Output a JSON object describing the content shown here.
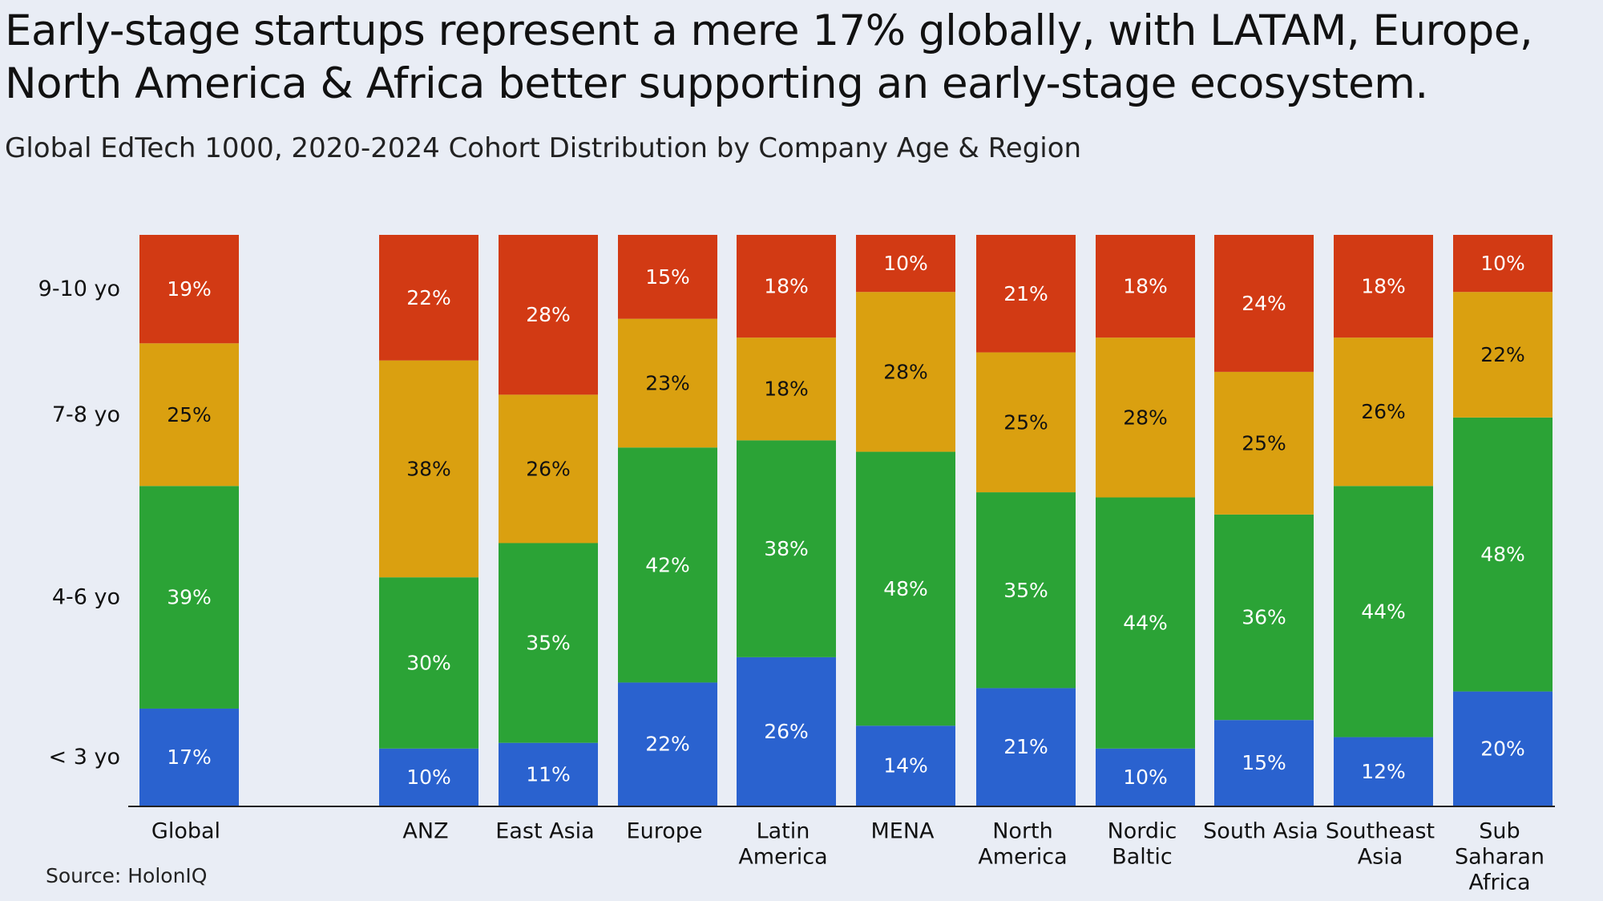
{
  "title": "Early-stage startups represent a mere 17% globally, with LATAM, Europe, North America & Africa better supporting an early-stage ecosystem.",
  "subtitle": "Global EdTech 1000, 2020-2024 Cohort Distribution by Company Age & Region",
  "source": "Source: HolonIQ",
  "chart_data": {
    "type": "bar",
    "stacked": true,
    "normalized": true,
    "categories": [
      "Global",
      "ANZ",
      "East Asia",
      "Europe",
      "Latin America",
      "MENA",
      "North America",
      "Nordic Baltic",
      "South Asia",
      "Southeast Asia",
      "Sub Saharan Africa"
    ],
    "category_label_lines": [
      [
        "Global"
      ],
      [
        "ANZ"
      ],
      [
        "East Asia"
      ],
      [
        "Europe"
      ],
      [
        "Latin",
        "America"
      ],
      [
        "MENA"
      ],
      [
        "North",
        "America"
      ],
      [
        "Nordic",
        "Baltic"
      ],
      [
        "South Asia"
      ],
      [
        "Southeast",
        "Asia"
      ],
      [
        "Sub",
        "Saharan",
        "Africa"
      ]
    ],
    "series": [
      {
        "name": "< 3 yo",
        "color": "#2a62cf",
        "label_color": "#ffffff",
        "values": [
          17,
          10,
          11,
          22,
          26,
          14,
          21,
          10,
          15,
          12,
          20
        ]
      },
      {
        "name": "4-6 yo",
        "color": "#2ba336",
        "label_color": "#ffffff",
        "values": [
          39,
          30,
          35,
          42,
          38,
          48,
          35,
          44,
          36,
          44,
          48
        ]
      },
      {
        "name": "7-8 yo",
        "color": "#daa010",
        "label_color": "#111111",
        "values": [
          25,
          38,
          26,
          23,
          18,
          28,
          25,
          28,
          25,
          26,
          22
        ]
      },
      {
        "name": "9-10 yo",
        "color": "#d23a14",
        "label_color": "#ffffff",
        "values": [
          19,
          22,
          28,
          15,
          18,
          10,
          21,
          18,
          24,
          18,
          10
        ]
      }
    ],
    "data_label_suffix": "%",
    "y_axis_labels": [
      "9-10 yo",
      "7-8 yo",
      "4-6 yo",
      "< 3 yo"
    ],
    "legend": "none",
    "grid": false
  }
}
